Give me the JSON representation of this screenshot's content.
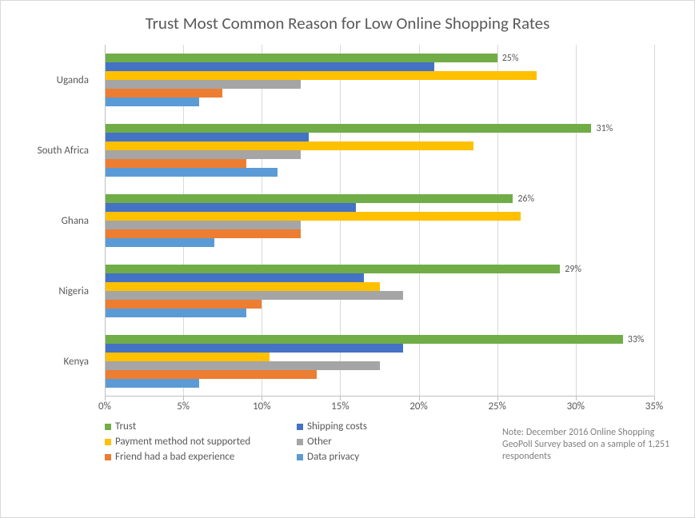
{
  "title": "Trust Most Common Reason for Low Online Shopping Rates",
  "type": "grouped-horizontal-bar",
  "background_color": "#ffffff",
  "grid_color": "#d9d9d9",
  "axis_color": "#bfbfbf",
  "text_color": "#595959",
  "title_fontsize": 21,
  "label_fontsize": 13,
  "xaxis": {
    "min": 0,
    "max": 35,
    "tick_step": 5,
    "ticks": [
      0,
      5,
      10,
      15,
      20,
      25,
      30,
      35
    ],
    "tick_labels": [
      "0%",
      "5%",
      "10%",
      "15%",
      "20%",
      "25%",
      "30%",
      "35%"
    ]
  },
  "series": [
    {
      "key": "trust",
      "label": "Trust",
      "color": "#70ad47"
    },
    {
      "key": "shipping",
      "label": "Shipping costs",
      "color": "#4472c4"
    },
    {
      "key": "payment",
      "label": "Payment method not supported",
      "color": "#ffc000"
    },
    {
      "key": "other",
      "label": "Other",
      "color": "#a5a5a5"
    },
    {
      "key": "friend",
      "label": "Friend had a bad experience",
      "color": "#ed7d31"
    },
    {
      "key": "privacy",
      "label": "Data privacy",
      "color": "#5b9bd5"
    }
  ],
  "categories": [
    {
      "name": "Uganda",
      "values": {
        "trust": 25,
        "shipping": 21,
        "payment": 27.5,
        "other": 12.5,
        "friend": 7.5,
        "privacy": 6
      },
      "top_label": "25%"
    },
    {
      "name": "South Africa",
      "values": {
        "trust": 31,
        "shipping": 13,
        "payment": 23.5,
        "other": 12.5,
        "friend": 9,
        "privacy": 11
      },
      "top_label": "31%"
    },
    {
      "name": "Ghana",
      "values": {
        "trust": 26,
        "shipping": 16,
        "payment": 26.5,
        "other": 12.5,
        "friend": 12.5,
        "privacy": 7
      },
      "top_label": "26%"
    },
    {
      "name": "Nigeria",
      "values": {
        "trust": 29,
        "shipping": 16.5,
        "payment": 17.5,
        "other": 19,
        "friend": 10,
        "privacy": 9
      },
      "top_label": "29%"
    },
    {
      "name": "Kenya",
      "values": {
        "trust": 33,
        "shipping": 19,
        "payment": 10.5,
        "other": 17.5,
        "friend": 13.5,
        "privacy": 6
      },
      "top_label": "33%"
    }
  ],
  "legend_layout": [
    [
      "trust",
      "shipping"
    ],
    [
      "payment",
      "other"
    ],
    [
      "friend",
      "privacy"
    ]
  ],
  "footnote": "Note: December 2016 Online Shopping  GeoPoll Survey based on a sample of 1,251 respondents"
}
